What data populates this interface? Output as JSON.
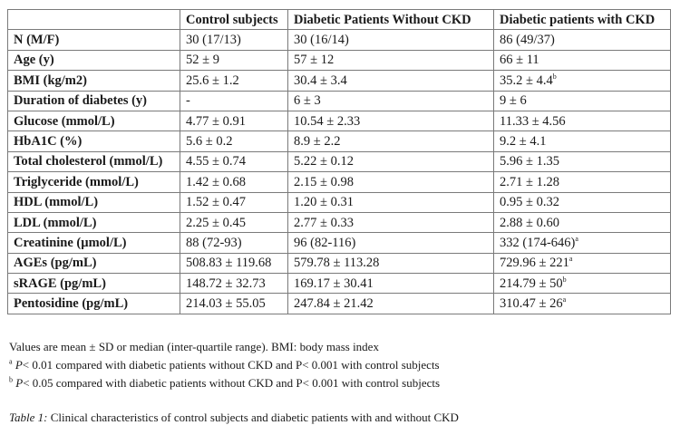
{
  "table": {
    "headers": [
      "",
      "Control subjects",
      "Diabetic Patients Without CKD",
      "Diabetic patients with CKD"
    ],
    "rows": [
      {
        "label": "N (M/F)",
        "cells": [
          {
            "v": "30 (17/13)",
            "s": ""
          },
          {
            "v": "30 (16/14)",
            "s": ""
          },
          {
            "v": "86 (49/37)",
            "s": ""
          }
        ]
      },
      {
        "label": "Age (y)",
        "cells": [
          {
            "v": "52 ± 9",
            "s": ""
          },
          {
            "v": "57 ± 12",
            "s": ""
          },
          {
            "v": "66 ± 11",
            "s": ""
          }
        ]
      },
      {
        "label": "BMI (kg/m2)",
        "cells": [
          {
            "v": "25.6 ± 1.2",
            "s": ""
          },
          {
            "v": "30.4 ± 3.4",
            "s": ""
          },
          {
            "v": "35.2 ± 4.4",
            "s": "b"
          }
        ]
      },
      {
        "label": "Duration of diabetes (y)",
        "cells": [
          {
            "v": "-",
            "s": ""
          },
          {
            "v": "6 ± 3",
            "s": ""
          },
          {
            "v": "9 ± 6",
            "s": ""
          }
        ]
      },
      {
        "label": "Glucose (mmol/L)",
        "cells": [
          {
            "v": "4.77 ± 0.91",
            "s": ""
          },
          {
            "v": "10.54 ± 2.33",
            "s": ""
          },
          {
            "v": "11.33 ± 4.56",
            "s": ""
          }
        ]
      },
      {
        "label": "HbA1C (%)",
        "cells": [
          {
            "v": "5.6 ± 0.2",
            "s": ""
          },
          {
            "v": "8.9 ± 2.2",
            "s": ""
          },
          {
            "v": "9.2 ± 4.1",
            "s": ""
          }
        ]
      },
      {
        "label": "Total cholesterol (mmol/L)",
        "cells": [
          {
            "v": "4.55 ± 0.74",
            "s": ""
          },
          {
            "v": "5.22 ± 0.12",
            "s": ""
          },
          {
            "v": "5.96 ± 1.35",
            "s": ""
          }
        ]
      },
      {
        "label": "Triglyceride (mmol/L)",
        "cells": [
          {
            "v": "1.42 ± 0.68",
            "s": ""
          },
          {
            "v": "2.15 ± 0.98",
            "s": ""
          },
          {
            "v": "2.71 ± 1.28",
            "s": ""
          }
        ]
      },
      {
        "label": "HDL (mmol/L)",
        "cells": [
          {
            "v": "1.52 ± 0.47",
            "s": ""
          },
          {
            "v": "1.20 ± 0.31",
            "s": ""
          },
          {
            "v": "0.95 ± 0.32",
            "s": ""
          }
        ]
      },
      {
        "label": "LDL (mmol/L)",
        "cells": [
          {
            "v": "2.25 ± 0.45",
            "s": ""
          },
          {
            "v": "2.77 ± 0.33",
            "s": ""
          },
          {
            "v": "2.88 ± 0.60",
            "s": ""
          }
        ]
      },
      {
        "label": "Creatinine (µmol/L)",
        "cells": [
          {
            "v": "88 (72-93)",
            "s": ""
          },
          {
            "v": "96 (82-116)",
            "s": ""
          },
          {
            "v": "332 (174-646)",
            "s": "a"
          }
        ]
      },
      {
        "label": "AGEs (pg/mL)",
        "cells": [
          {
            "v": "508.83 ± 119.68",
            "s": ""
          },
          {
            "v": "579.78 ± 113.28",
            "s": ""
          },
          {
            "v": "729.96 ± 221",
            "s": "a"
          }
        ]
      },
      {
        "label": "sRAGE (pg/mL)",
        "cells": [
          {
            "v": "148.72 ± 32.73",
            "s": ""
          },
          {
            "v": "169.17 ± 30.41",
            "s": ""
          },
          {
            "v": "214.79 ± 50",
            "s": "b"
          }
        ]
      },
      {
        "label": "Pentosidine (pg/mL)",
        "cells": [
          {
            "v": "214.03 ± 55.05",
            "s": ""
          },
          {
            "v": "247.84 ± 21.42",
            "s": ""
          },
          {
            "v": "310.47 ± 26",
            "s": "a"
          }
        ]
      }
    ]
  },
  "notes": {
    "line1": "Values are mean ± SD or median (inter-quartile range). BMI: body mass index",
    "a_mark": "a",
    "a_p": "P",
    "a_text": "< 0.01 compared with diabetic patients without CKD and P< 0.001 with control subjects",
    "b_mark": "b",
    "b_p": "P",
    "b_text": "< 0.05 compared with diabetic patients without CKD and P< 0.001 with control subjects"
  },
  "caption": {
    "label": "Table 1:",
    "text": " Clinical characteristics of control subjects and diabetic patients with and without CKD"
  }
}
